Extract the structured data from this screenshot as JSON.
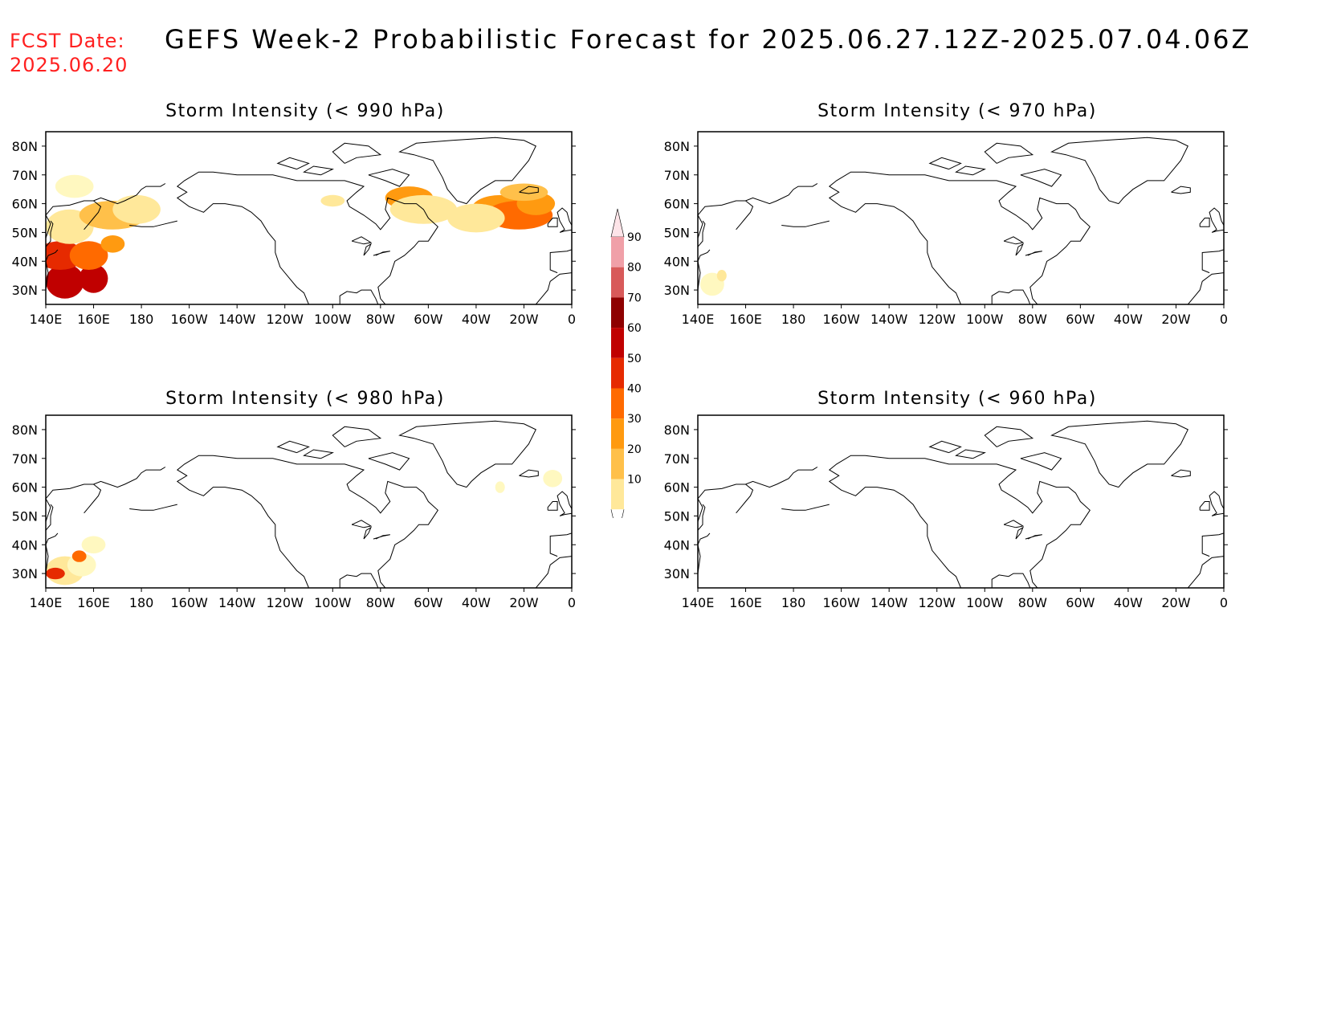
{
  "header": {
    "fcst_label": "FCST Date:",
    "fcst_date": "2025.06.20",
    "title": "GEFS Week-2 Probabilistic Forecast for 2025.06.27.12Z-2025.07.04.06Z"
  },
  "axes": {
    "lat_labels": [
      "80N",
      "70N",
      "60N",
      "50N",
      "40N",
      "30N"
    ],
    "lon_labels": [
      "140E",
      "160E",
      "180",
      "160W",
      "140W",
      "120W",
      "100W",
      "80W",
      "60W",
      "40W",
      "20W",
      "0"
    ]
  },
  "colorbar": {
    "levels": [
      "10",
      "20",
      "30",
      "40",
      "50",
      "60",
      "70",
      "80",
      "90"
    ],
    "colors": [
      "#fff8c0",
      "#ffe89a",
      "#ffc04a",
      "#ff9a10",
      "#ff6a00",
      "#e62a00",
      "#c00000",
      "#8e0000",
      "#d85a5a",
      "#f0a0a8",
      "#fde4e8"
    ]
  },
  "panels": [
    {
      "title": "Storm Intensity (< 990 hPa)",
      "blobs": [
        {
          "x": 148,
          "y": 33,
          "rx": 8,
          "ry": 6,
          "c": 6
        },
        {
          "x": 160,
          "y": 34,
          "rx": 6,
          "ry": 5,
          "c": 6
        },
        {
          "x": 146,
          "y": 42,
          "rx": 10,
          "ry": 5,
          "c": 5
        },
        {
          "x": 158,
          "y": 42,
          "rx": 8,
          "ry": 5,
          "c": 4
        },
        {
          "x": 168,
          "y": 46,
          "rx": 5,
          "ry": 3,
          "c": 3
        },
        {
          "x": 150,
          "y": 52,
          "rx": 10,
          "ry": 6,
          "c": 1
        },
        {
          "x": 168,
          "y": 56,
          "rx": 14,
          "ry": 5,
          "c": 2
        },
        {
          "x": 178,
          "y": 58,
          "rx": 10,
          "ry": 5,
          "c": 1
        },
        {
          "x": 152,
          "y": 66,
          "rx": 8,
          "ry": 4,
          "c": 0
        },
        {
          "x": -68,
          "y": 62,
          "rx": 10,
          "ry": 4,
          "c": 3
        },
        {
          "x": -62,
          "y": 58,
          "rx": 14,
          "ry": 5,
          "c": 1
        },
        {
          "x": -30,
          "y": 58,
          "rx": 12,
          "ry": 5,
          "c": 3
        },
        {
          "x": -22,
          "y": 56,
          "rx": 14,
          "ry": 5,
          "c": 4
        },
        {
          "x": -15,
          "y": 60,
          "rx": 8,
          "ry": 4,
          "c": 3
        },
        {
          "x": -40,
          "y": 55,
          "rx": 12,
          "ry": 5,
          "c": 1
        },
        {
          "x": -20,
          "y": 64,
          "rx": 10,
          "ry": 3,
          "c": 2
        },
        {
          "x": -100,
          "y": 61,
          "rx": 5,
          "ry": 2,
          "c": 1
        }
      ]
    },
    {
      "title": "Storm Intensity (< 970 hPa)",
      "blobs": [
        {
          "x": 146,
          "y": 32,
          "rx": 5,
          "ry": 4,
          "c": 0
        },
        {
          "x": 150,
          "y": 35,
          "rx": 2,
          "ry": 2,
          "c": 1
        }
      ]
    },
    {
      "title": "Storm Intensity (< 980 hPa)",
      "blobs": [
        {
          "x": 148,
          "y": 31,
          "rx": 8,
          "ry": 5,
          "c": 1
        },
        {
          "x": 155,
          "y": 33,
          "rx": 6,
          "ry": 4,
          "c": 0
        },
        {
          "x": 144,
          "y": 30,
          "rx": 4,
          "ry": 2,
          "c": 5
        },
        {
          "x": 154,
          "y": 36,
          "rx": 3,
          "ry": 2,
          "c": 4
        },
        {
          "x": 160,
          "y": 40,
          "rx": 5,
          "ry": 3,
          "c": 0
        },
        {
          "x": -8,
          "y": 63,
          "rx": 4,
          "ry": 3,
          "c": 0
        },
        {
          "x": -30,
          "y": 60,
          "rx": 2,
          "ry": 2,
          "c": 0
        }
      ]
    },
    {
      "title": "Storm Intensity (< 960 hPa)",
      "blobs": []
    }
  ]
}
